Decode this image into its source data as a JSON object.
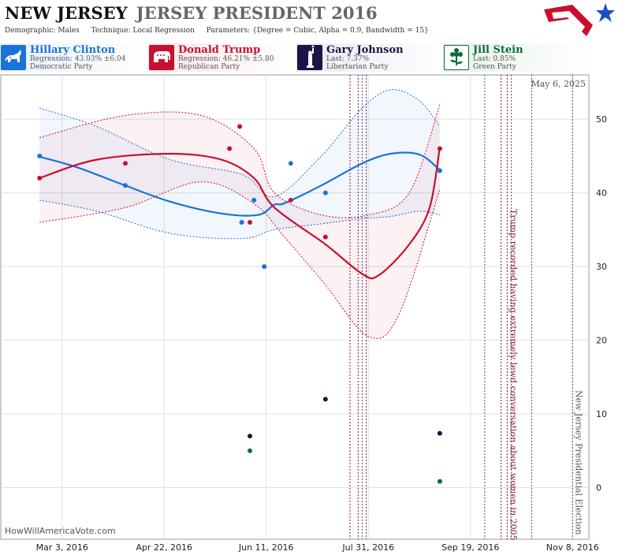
{
  "header": {
    "state": "NEW JERSEY",
    "race": "JERSEY PRESIDENT 2016",
    "demographic_label": "Demographic:",
    "demographic_value": "Males",
    "technique_label": "Technique:",
    "technique_value": "Local Regression",
    "parameters_label": "Parameters:",
    "parameters_value": "{Degree = Cubic, Alpha = 0.9, Bandwidth = 15}"
  },
  "candidates": [
    {
      "name": "Hillary Clinton",
      "stat": "Regression: 43.03% ±6.04",
      "party": "Democratic Party",
      "color": "#1a73d9",
      "icon": "donkey-icon"
    },
    {
      "name": "Donald Trump",
      "stat": "Regression: 46.21% ±5.80",
      "party": "Republican Party",
      "color": "#c8102e",
      "icon": "elephant-icon"
    },
    {
      "name": "Gary Johnson",
      "stat": "Last: 7.37%",
      "party": "Libertarian Party",
      "color": "#1c1446",
      "icon": "liberty-icon"
    },
    {
      "name": "Jill Stein",
      "stat": "Last: 0.85%",
      "party": "Green Party",
      "color": "#0f6b3b",
      "icon": "flower-icon"
    }
  ],
  "date_stamp": "May 6, 2025",
  "site": "HowWillAmericaVote.com",
  "chart_data": {
    "type": "scatter",
    "x_axis": {
      "type": "date",
      "min": "2016-02-02",
      "max": "2016-11-16",
      "ticks": [
        "2016-03-03",
        "2016-04-22",
        "2016-06-11",
        "2016-07-31",
        "2016-09-19",
        "2016-11-08"
      ],
      "tick_labels": [
        "Mar 3, 2016",
        "Apr 22, 2016",
        "Jun 11, 2016",
        "Jul 31, 2016",
        "Sep 19, 2016",
        "Nov 8, 2016"
      ]
    },
    "y_axis": {
      "min": -7,
      "max": 56,
      "ticks": [
        0,
        10,
        20,
        30,
        40,
        50
      ],
      "tick_labels": [
        "0",
        "10",
        "20",
        "30",
        "40",
        "50"
      ],
      "grid": true
    },
    "series": [
      {
        "name": "Hillary Clinton",
        "color": "#1a73d9",
        "points": [
          [
            "2016-02-21",
            45
          ],
          [
            "2016-04-03",
            41
          ],
          [
            "2016-05-30",
            36
          ],
          [
            "2016-06-05",
            39
          ],
          [
            "2016-06-10",
            30
          ],
          [
            "2016-06-23",
            44
          ],
          [
            "2016-07-10",
            40
          ],
          [
            "2016-09-04",
            43
          ]
        ],
        "fit": [
          [
            "2016-02-21",
            44.9
          ],
          [
            "2016-03-10",
            43.5
          ],
          [
            "2016-04-01",
            41.2
          ],
          [
            "2016-04-25",
            38.8
          ],
          [
            "2016-05-20",
            37.2
          ],
          [
            "2016-06-07",
            37.0
          ],
          [
            "2016-06-15",
            38.4
          ],
          [
            "2016-06-20",
            38.6
          ],
          [
            "2016-07-08",
            41.0
          ],
          [
            "2016-07-28",
            44.0
          ],
          [
            "2016-08-11",
            45.3
          ],
          [
            "2016-08-25",
            45.2
          ],
          [
            "2016-09-04",
            43.1
          ]
        ],
        "band_upper": [
          [
            "2016-02-21",
            51.5
          ],
          [
            "2016-03-20",
            49.0
          ],
          [
            "2016-04-25",
            44.5
          ],
          [
            "2016-05-30",
            42.5
          ],
          [
            "2016-06-15",
            39.5
          ],
          [
            "2016-07-08",
            45.0
          ],
          [
            "2016-07-28",
            51.5
          ],
          [
            "2016-08-11",
            54.0
          ],
          [
            "2016-08-25",
            52.5
          ],
          [
            "2016-09-04",
            49.0
          ]
        ],
        "band_lower": [
          [
            "2016-02-21",
            39.0
          ],
          [
            "2016-03-20",
            37.5
          ],
          [
            "2016-04-25",
            34.5
          ],
          [
            "2016-05-30",
            33.8
          ],
          [
            "2016-06-15",
            35.0
          ],
          [
            "2016-07-08",
            35.8
          ],
          [
            "2016-07-28",
            36.5
          ],
          [
            "2016-08-11",
            36.8
          ],
          [
            "2016-08-25",
            37.5
          ],
          [
            "2016-09-04",
            37.0
          ]
        ]
      },
      {
        "name": "Donald Trump",
        "color": "#c8102e",
        "points": [
          [
            "2016-02-21",
            42
          ],
          [
            "2016-04-03",
            44
          ],
          [
            "2016-05-24",
            46
          ],
          [
            "2016-05-29",
            49
          ],
          [
            "2016-06-03",
            36
          ],
          [
            "2016-06-23",
            39
          ],
          [
            "2016-07-10",
            34
          ],
          [
            "2016-09-04",
            46
          ]
        ],
        "fit": [
          [
            "2016-02-21",
            42.0
          ],
          [
            "2016-03-20",
            44.5
          ],
          [
            "2016-04-25",
            45.3
          ],
          [
            "2016-05-20",
            44.5
          ],
          [
            "2016-06-05",
            42.0
          ],
          [
            "2016-06-15",
            38.0
          ],
          [
            "2016-07-10",
            33.0
          ],
          [
            "2016-07-28",
            29.0
          ],
          [
            "2016-08-05",
            28.8
          ],
          [
            "2016-08-20",
            33.0
          ],
          [
            "2016-08-30",
            38.0
          ],
          [
            "2016-09-04",
            46.2
          ]
        ],
        "band_upper": [
          [
            "2016-02-21",
            47.5
          ],
          [
            "2016-04-03",
            50.5
          ],
          [
            "2016-05-10",
            50.5
          ],
          [
            "2016-06-05",
            46.0
          ],
          [
            "2016-06-15",
            40.0
          ],
          [
            "2016-07-08",
            37.0
          ],
          [
            "2016-07-31",
            37.0
          ],
          [
            "2016-08-20",
            40.0
          ],
          [
            "2016-09-04",
            52.0
          ]
        ],
        "band_lower": [
          [
            "2016-02-21",
            36.0
          ],
          [
            "2016-04-03",
            38.0
          ],
          [
            "2016-05-10",
            41.5
          ],
          [
            "2016-06-05",
            38.5
          ],
          [
            "2016-06-20",
            34.0
          ],
          [
            "2016-07-10",
            27.5
          ],
          [
            "2016-07-31",
            20.5
          ],
          [
            "2016-08-15",
            23.5
          ],
          [
            "2016-09-04",
            40.5
          ]
        ]
      },
      {
        "name": "Gary Johnson",
        "color": "#1c1446",
        "points": [
          [
            "2016-06-03",
            7
          ],
          [
            "2016-07-10",
            12
          ],
          [
            "2016-09-04",
            7.37
          ]
        ]
      },
      {
        "name": "Jill Stein",
        "color": "#0f6b3b",
        "points": [
          [
            "2016-06-03",
            5
          ],
          [
            "2016-09-04",
            0.85
          ]
        ]
      }
    ],
    "events": [
      {
        "date": "2016-07-22",
        "color": "#8a1538"
      },
      {
        "date": "2016-07-26",
        "color": "#8a1538"
      },
      {
        "date": "2016-07-28",
        "color": "#2a5bd7"
      },
      {
        "date": "2016-07-30",
        "color": "#8a1538"
      },
      {
        "date": "2016-09-26",
        "color": "#555555"
      },
      {
        "date": "2016-10-04",
        "color": "#8a1538"
      },
      {
        "date": "2016-10-07",
        "color": "#8a1538",
        "label": "Trump recorded having extremely lewd conversation about women in 2005"
      },
      {
        "date": "2016-10-09",
        "color": "#555555"
      },
      {
        "date": "2016-10-19",
        "color": "#555555"
      },
      {
        "date": "2016-11-08",
        "color": "#555555",
        "label": "New Jersey Presidential Election"
      }
    ]
  }
}
